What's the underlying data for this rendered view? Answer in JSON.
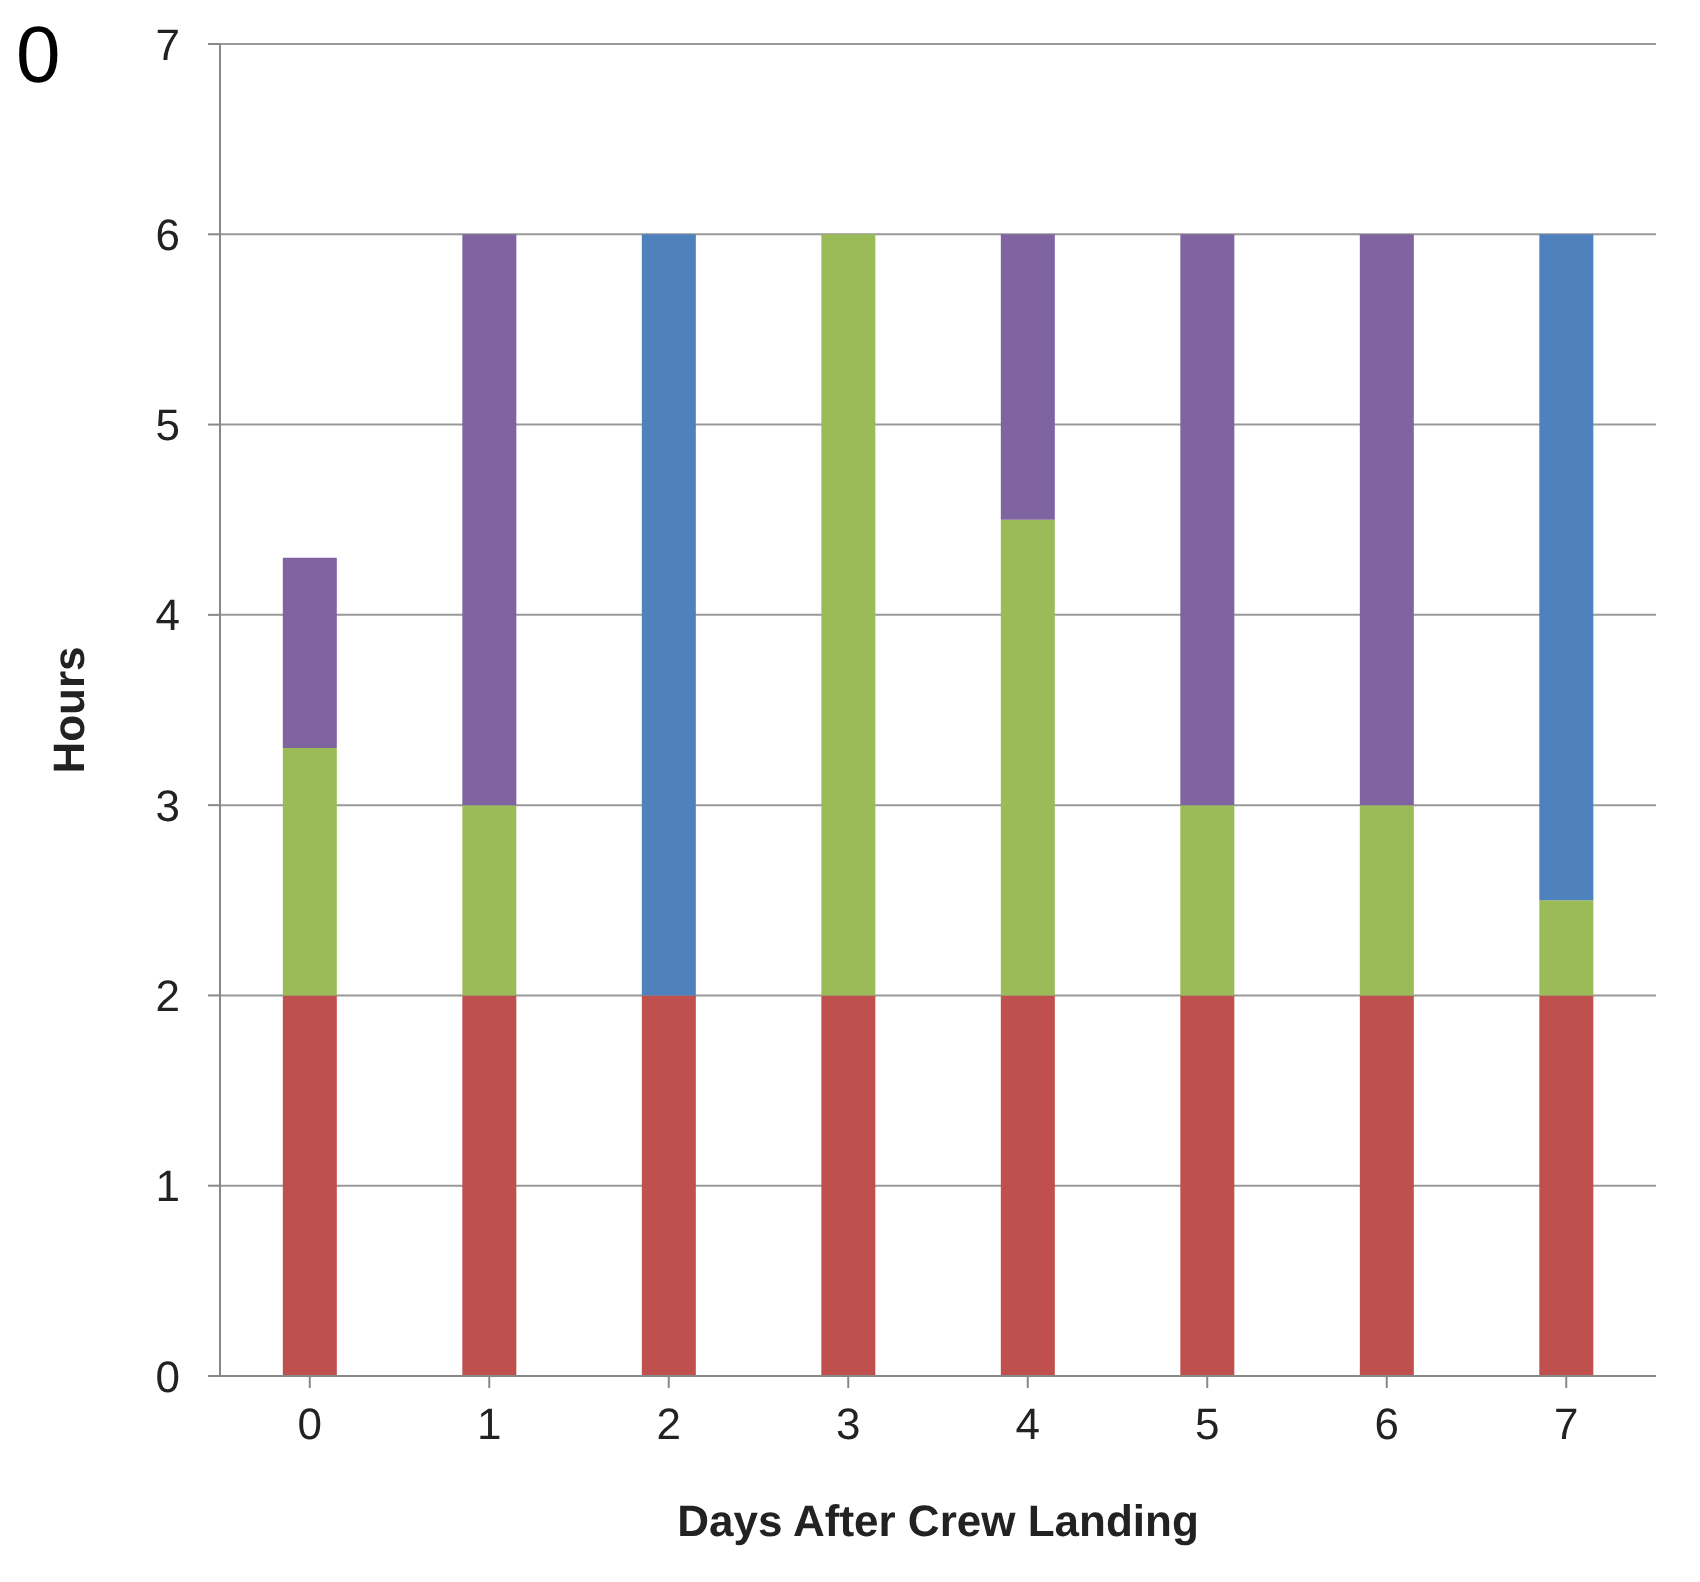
{
  "chart_data": {
    "type": "bar",
    "stacked": true,
    "xlabel": "Days After Crew Landing",
    "ylabel": "Hours",
    "annotations": [
      "0"
    ],
    "categories": [
      "0",
      "1",
      "2",
      "3",
      "4",
      "5",
      "6",
      "7"
    ],
    "series": [
      {
        "color": "#c0504d",
        "values": [
          2,
          2,
          2,
          2,
          2,
          2,
          2,
          2
        ]
      },
      {
        "color": "#9bbb59",
        "values": [
          1.3,
          1,
          null,
          4,
          2.5,
          1,
          1,
          0.5
        ]
      },
      {
        "color": "#8064a2",
        "values": [
          1,
          3,
          null,
          null,
          1.5,
          3,
          3,
          null
        ]
      },
      {
        "color": "#4f81bd",
        "values": [
          null,
          null,
          4,
          null,
          null,
          null,
          null,
          3.5
        ]
      }
    ],
    "ylim": [
      0,
      7
    ],
    "yticks": [
      0,
      1,
      2,
      3,
      4,
      5,
      6,
      7
    ],
    "grid": "y",
    "legend": false
  }
}
